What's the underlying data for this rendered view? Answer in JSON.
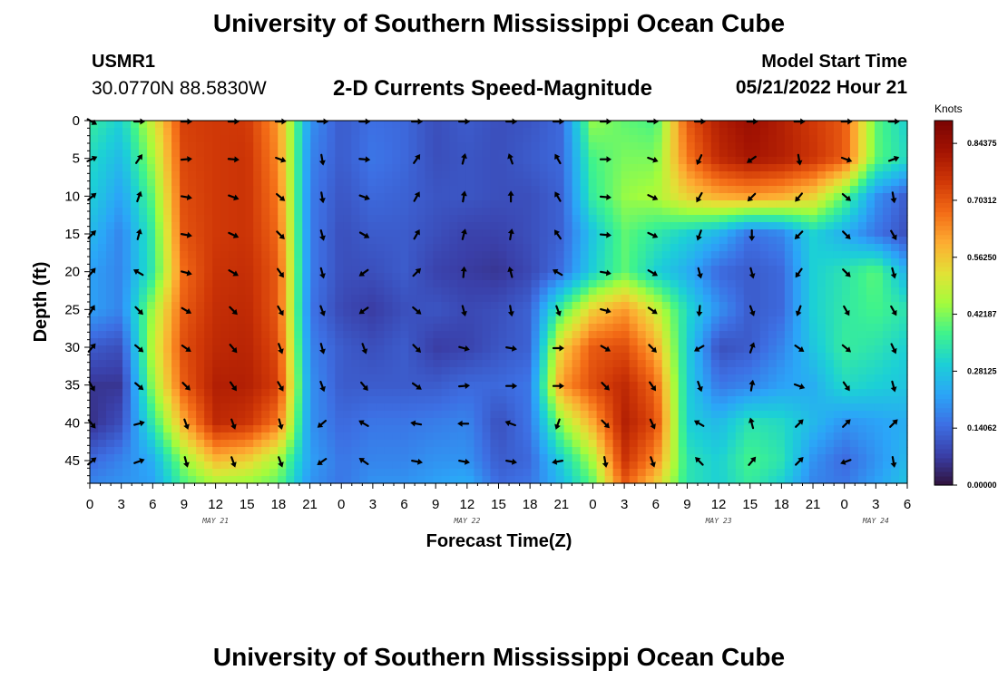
{
  "header": {
    "title": "University of Southern Mississippi Ocean Cube",
    "station_id": "USMR1",
    "station_coords": "30.0770N  88.5830W",
    "plot_title": "2-D Currents Speed-Magnitude",
    "model_start_label": "Model Start Time",
    "model_start_value": "05/21/2022 Hour 21"
  },
  "footer": {
    "title": "University of Southern Mississippi Ocean Cube"
  },
  "chart_data": {
    "type": "heatmap",
    "title": "2-D Currents Speed-Magnitude",
    "xlabel": "Forecast Time(Z)",
    "ylabel": "Depth (ft)",
    "x_tick_labels": [
      "0",
      "3",
      "6",
      "9",
      "12",
      "15",
      "18",
      "21",
      "0",
      "3",
      "6",
      "9",
      "12",
      "15",
      "18",
      "21",
      "0",
      "3",
      "6",
      "9",
      "12",
      "15",
      "18",
      "21",
      "0",
      "3",
      "6"
    ],
    "x_range_hours": [
      0,
      78
    ],
    "x_date_labels": [
      {
        "label": "MAY 21",
        "hour": 12
      },
      {
        "label": "MAY 22",
        "hour": 36
      },
      {
        "label": "MAY 23",
        "hour": 60
      },
      {
        "label": "MAY 24",
        "hour": 75
      }
    ],
    "y_ticks": [
      0,
      5,
      10,
      15,
      20,
      25,
      30,
      35,
      40,
      45
    ],
    "ylim": [
      0,
      48
    ],
    "y_inverted": true,
    "colorbar": {
      "units": "Knots",
      "range": [
        0,
        0.9
      ],
      "tick_values": [
        0.0,
        0.140625,
        0.28125,
        0.421875,
        0.5625,
        0.703125,
        0.84375
      ],
      "tick_labels": [
        "0.00000",
        "0.14062",
        "0.28125",
        "0.42187",
        "0.56250",
        "0.70312",
        "0.84375"
      ],
      "colors": [
        "#30123b",
        "#3a3fa8",
        "#3d6fe3",
        "#2ba5f8",
        "#1cd0d6",
        "#3ef38d",
        "#a4fc3c",
        "#e3e136",
        "#fdac32",
        "#f36b16",
        "#d03807",
        "#a31302",
        "#7a0403"
      ]
    },
    "speed_field": {
      "hours": [
        0,
        3,
        6,
        9,
        12,
        15,
        18,
        21,
        24,
        27,
        30,
        33,
        36,
        39,
        42,
        45,
        48,
        51,
        54,
        57,
        60,
        63,
        66,
        69,
        72,
        75,
        78
      ],
      "depths": [
        0,
        5,
        10,
        15,
        20,
        25,
        30,
        35,
        40,
        45,
        48
      ],
      "values_knots": [
        [
          0.36,
          0.3,
          0.5,
          0.74,
          0.75,
          0.75,
          0.62,
          0.2,
          0.12,
          0.15,
          0.14,
          0.1,
          0.12,
          0.1,
          0.11,
          0.14,
          0.44,
          0.4,
          0.38,
          0.7,
          0.8,
          0.84,
          0.8,
          0.75,
          0.7,
          0.4,
          0.3
        ],
        [
          0.32,
          0.26,
          0.45,
          0.73,
          0.75,
          0.76,
          0.64,
          0.18,
          0.12,
          0.16,
          0.14,
          0.1,
          0.11,
          0.1,
          0.12,
          0.14,
          0.38,
          0.42,
          0.42,
          0.66,
          0.78,
          0.82,
          0.8,
          0.76,
          0.7,
          0.4,
          0.32
        ],
        [
          0.3,
          0.22,
          0.4,
          0.72,
          0.75,
          0.76,
          0.66,
          0.17,
          0.11,
          0.14,
          0.13,
          0.11,
          0.11,
          0.1,
          0.1,
          0.13,
          0.36,
          0.44,
          0.46,
          0.55,
          0.6,
          0.62,
          0.6,
          0.55,
          0.4,
          0.2,
          0.12
        ],
        [
          0.26,
          0.18,
          0.36,
          0.71,
          0.75,
          0.76,
          0.68,
          0.17,
          0.1,
          0.12,
          0.12,
          0.1,
          0.08,
          0.08,
          0.1,
          0.13,
          0.28,
          0.4,
          0.35,
          0.3,
          0.25,
          0.15,
          0.18,
          0.3,
          0.24,
          0.16,
          0.1
        ],
        [
          0.22,
          0.18,
          0.35,
          0.68,
          0.76,
          0.77,
          0.7,
          0.17,
          0.1,
          0.1,
          0.12,
          0.08,
          0.07,
          0.06,
          0.09,
          0.15,
          0.3,
          0.4,
          0.3,
          0.24,
          0.14,
          0.12,
          0.14,
          0.3,
          0.34,
          0.4,
          0.24
        ],
        [
          0.22,
          0.18,
          0.45,
          0.7,
          0.77,
          0.78,
          0.7,
          0.16,
          0.09,
          0.07,
          0.1,
          0.11,
          0.09,
          0.1,
          0.13,
          0.38,
          0.55,
          0.62,
          0.5,
          0.32,
          0.2,
          0.12,
          0.14,
          0.3,
          0.35,
          0.38,
          0.34
        ],
        [
          0.12,
          0.1,
          0.48,
          0.72,
          0.78,
          0.79,
          0.72,
          0.18,
          0.12,
          0.1,
          0.12,
          0.07,
          0.08,
          0.11,
          0.13,
          0.55,
          0.7,
          0.72,
          0.6,
          0.3,
          0.1,
          0.12,
          0.18,
          0.28,
          0.36,
          0.34,
          0.3
        ],
        [
          0.06,
          0.06,
          0.44,
          0.7,
          0.8,
          0.8,
          0.74,
          0.2,
          0.12,
          0.12,
          0.12,
          0.12,
          0.14,
          0.14,
          0.16,
          0.62,
          0.72,
          0.78,
          0.68,
          0.3,
          0.16,
          0.18,
          0.22,
          0.24,
          0.32,
          0.3,
          0.28
        ],
        [
          0.05,
          0.1,
          0.35,
          0.6,
          0.78,
          0.76,
          0.66,
          0.2,
          0.14,
          0.16,
          0.16,
          0.17,
          0.18,
          0.1,
          0.16,
          0.44,
          0.6,
          0.8,
          0.72,
          0.3,
          0.26,
          0.34,
          0.32,
          0.26,
          0.2,
          0.22,
          0.24
        ],
        [
          0.14,
          0.18,
          0.24,
          0.44,
          0.58,
          0.55,
          0.45,
          0.22,
          0.16,
          0.18,
          0.18,
          0.2,
          0.2,
          0.12,
          0.14,
          0.3,
          0.46,
          0.76,
          0.64,
          0.34,
          0.3,
          0.38,
          0.34,
          0.2,
          0.14,
          0.2,
          0.26
        ],
        [
          0.18,
          0.2,
          0.22,
          0.38,
          0.46,
          0.44,
          0.4,
          0.2,
          0.16,
          0.2,
          0.2,
          0.22,
          0.24,
          0.14,
          0.16,
          0.26,
          0.4,
          0.7,
          0.56,
          0.34,
          0.3,
          0.36,
          0.3,
          0.18,
          0.16,
          0.22,
          0.28
        ]
      ]
    },
    "arrows": {
      "hours": [
        0,
        4.5,
        9,
        13.5,
        18,
        22,
        26,
        31,
        35.5,
        40,
        44.5,
        49,
        53.5,
        58,
        63,
        67.5,
        72,
        76.5
      ],
      "depths": [
        0,
        5,
        10,
        15,
        20,
        25,
        30,
        35,
        40,
        45
      ],
      "directions_deg": [
        [
          120,
          90,
          90,
          90,
          90,
          90,
          90,
          90,
          90,
          90,
          90,
          90,
          90,
          90,
          90,
          90,
          90,
          90
        ],
        [
          65,
          35,
          85,
          95,
          110,
          170,
          95,
          35,
          15,
          340,
          330,
          90,
          110,
          205,
          235,
          170,
          110,
          70
        ],
        [
          50,
          20,
          100,
          110,
          130,
          170,
          110,
          30,
          10,
          0,
          330,
          95,
          115,
          210,
          225,
          220,
          130,
          170
        ],
        [
          45,
          15,
          100,
          115,
          135,
          165,
          120,
          30,
          15,
          10,
          325,
          95,
          115,
          200,
          180,
          225,
          135,
          150
        ],
        [
          40,
          300,
          105,
          120,
          145,
          165,
          235,
          45,
          5,
          345,
          300,
          100,
          120,
          165,
          165,
          215,
          135,
          165
        ],
        [
          30,
          135,
          120,
          135,
          150,
          160,
          235,
          130,
          165,
          170,
          160,
          105,
          125,
          185,
          160,
          200,
          150,
          150
        ],
        [
          40,
          130,
          125,
          140,
          160,
          165,
          160,
          135,
          105,
          100,
          90,
          120,
          135,
          240,
          20,
          125,
          130,
          155
        ],
        [
          150,
          130,
          135,
          145,
          150,
          160,
          140,
          125,
          85,
          90,
          90,
          135,
          145,
          160,
          10,
          110,
          145,
          165
        ],
        [
          140,
          75,
          160,
          160,
          165,
          230,
          300,
          280,
          270,
          290,
          200,
          135,
          155,
          300,
          345,
          45,
          45,
          45
        ],
        [
          50,
          70,
          165,
          160,
          160,
          235,
          305,
          100,
          100,
          100,
          260,
          170,
          160,
          315,
          40,
          45,
          250,
          170
        ]
      ]
    }
  }
}
